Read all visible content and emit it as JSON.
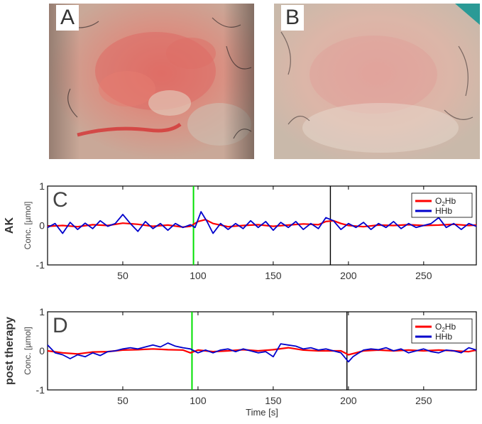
{
  "panels": {
    "photo_a": {
      "label": "A"
    },
    "photo_b": {
      "label": "B"
    }
  },
  "colors": {
    "o2hb": "#ff0000",
    "hhb": "#0000cc",
    "marker_green": "#00e000",
    "marker_black": "#000000"
  },
  "chart_data": [
    {
      "type": "line",
      "panel_label": "C",
      "row_label": "AK",
      "ylabel": "Conc. [µmol]",
      "xlabel": "",
      "xlim": [
        0,
        285
      ],
      "ylim": [
        -1,
        1
      ],
      "xticks": [
        50,
        100,
        150,
        200,
        250
      ],
      "yticks": [
        1,
        0,
        -1
      ],
      "legend_position": "top-right",
      "markers": [
        {
          "x": 97,
          "color": "green"
        },
        {
          "x": 188,
          "color": "black"
        }
      ],
      "series": [
        {
          "name": "O2Hb",
          "color": "#ff0000",
          "x": [
            0,
            10,
            20,
            30,
            40,
            50,
            60,
            70,
            80,
            90,
            95,
            100,
            105,
            110,
            120,
            130,
            140,
            150,
            160,
            170,
            180,
            185,
            190,
            195,
            200,
            210,
            220,
            230,
            240,
            250,
            260,
            270,
            280,
            285
          ],
          "y": [
            -0.02,
            0.0,
            -0.03,
            0.02,
            0.0,
            0.06,
            0.03,
            -0.02,
            0.01,
            -0.04,
            -0.02,
            0.1,
            0.15,
            0.05,
            -0.03,
            0.0,
            0.02,
            -0.02,
            0.01,
            0.04,
            0.02,
            0.1,
            0.12,
            0.05,
            0.0,
            -0.03,
            0.01,
            0.0,
            0.02,
            0.0,
            0.01,
            0.03,
            0.0,
            0.01
          ]
        },
        {
          "name": "HHb",
          "color": "#0000cc",
          "x": [
            0,
            5,
            10,
            15,
            20,
            25,
            30,
            35,
            40,
            45,
            50,
            55,
            60,
            65,
            70,
            75,
            80,
            85,
            90,
            95,
            98,
            102,
            106,
            110,
            115,
            120,
            125,
            130,
            135,
            140,
            145,
            150,
            155,
            160,
            165,
            170,
            175,
            180,
            185,
            190,
            195,
            200,
            205,
            210,
            215,
            220,
            225,
            230,
            235,
            240,
            245,
            250,
            255,
            260,
            265,
            270,
            275,
            280,
            285
          ],
          "y": [
            -0.05,
            0.05,
            -0.2,
            0.08,
            -0.1,
            0.06,
            -0.08,
            0.12,
            -0.02,
            0.05,
            0.28,
            0.05,
            -0.15,
            0.1,
            -0.08,
            0.05,
            -0.12,
            0.05,
            -0.05,
            0.02,
            -0.05,
            0.35,
            0.1,
            -0.2,
            0.05,
            -0.1,
            0.05,
            -0.08,
            0.12,
            -0.05,
            0.1,
            -0.12,
            0.08,
            -0.05,
            0.1,
            -0.1,
            0.05,
            -0.08,
            0.2,
            0.12,
            -0.1,
            0.05,
            -0.05,
            0.08,
            -0.1,
            0.05,
            -0.05,
            0.1,
            -0.08,
            0.05,
            -0.05,
            0.0,
            0.05,
            0.2,
            -0.05,
            0.05,
            -0.1,
            0.05,
            -0.02
          ]
        }
      ]
    },
    {
      "type": "line",
      "panel_label": "D",
      "row_label": "post therapy",
      "ylabel": "Conc. [µmol]",
      "xlabel": "Time [s]",
      "xlim": [
        0,
        285
      ],
      "ylim": [
        -1,
        1
      ],
      "xticks": [
        50,
        100,
        150,
        200,
        250
      ],
      "yticks": [
        1,
        0,
        -1
      ],
      "legend_position": "top-right",
      "markers": [
        {
          "x": 96,
          "color": "green"
        },
        {
          "x": 199,
          "color": "black"
        }
      ],
      "series": [
        {
          "name": "O2Hb",
          "color": "#ff0000",
          "x": [
            0,
            10,
            20,
            30,
            40,
            50,
            60,
            70,
            80,
            90,
            95,
            100,
            110,
            120,
            130,
            140,
            150,
            160,
            170,
            180,
            190,
            195,
            200,
            205,
            210,
            220,
            230,
            240,
            250,
            260,
            270,
            280,
            285
          ],
          "y": [
            0.0,
            -0.05,
            -0.08,
            -0.03,
            -0.02,
            0.02,
            0.03,
            0.05,
            0.03,
            0.02,
            -0.05,
            0.02,
            -0.02,
            0.0,
            0.03,
            0.0,
            0.03,
            0.08,
            0.02,
            0.0,
            0.0,
            0.0,
            -0.1,
            -0.05,
            0.0,
            0.02,
            0.0,
            0.02,
            0.0,
            0.02,
            0.0,
            -0.02,
            0.02
          ]
        },
        {
          "name": "HHb",
          "color": "#0000cc",
          "x": [
            0,
            5,
            10,
            15,
            20,
            25,
            30,
            35,
            40,
            45,
            50,
            55,
            60,
            65,
            70,
            75,
            80,
            85,
            90,
            95,
            100,
            105,
            110,
            115,
            120,
            125,
            130,
            135,
            140,
            145,
            150,
            155,
            160,
            165,
            170,
            175,
            180,
            185,
            190,
            195,
            200,
            203,
            207,
            210,
            215,
            220,
            225,
            230,
            235,
            240,
            245,
            250,
            255,
            260,
            265,
            270,
            275,
            280,
            285
          ],
          "y": [
            0.15,
            -0.05,
            -0.1,
            -0.2,
            -0.1,
            -0.15,
            -0.05,
            -0.12,
            -0.02,
            0.0,
            0.05,
            0.08,
            0.05,
            0.1,
            0.15,
            0.1,
            0.2,
            0.12,
            0.08,
            0.05,
            -0.05,
            0.02,
            -0.05,
            0.02,
            0.05,
            -0.02,
            0.05,
            0.0,
            -0.05,
            -0.02,
            -0.15,
            0.18,
            0.15,
            0.12,
            0.05,
            0.08,
            0.02,
            0.05,
            0.0,
            -0.05,
            -0.28,
            -0.15,
            -0.05,
            0.02,
            0.05,
            0.03,
            0.08,
            0.0,
            0.05,
            -0.05,
            0.0,
            0.05,
            -0.02,
            -0.05,
            0.02,
            0.0,
            -0.05,
            0.08,
            0.02
          ]
        }
      ]
    }
  ]
}
